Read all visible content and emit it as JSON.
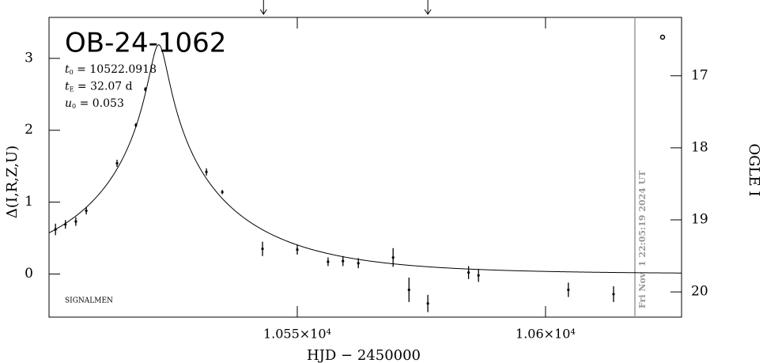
{
  "chart_data": {
    "type": "scatter",
    "title": "OB-24-1062",
    "x_label": "HJD − 2450000",
    "y_label": "Δ(I,R,Z,U)",
    "y2_label": "OGLE I",
    "credit": "SIGNALMEN",
    "params": [
      {
        "symbol": "t",
        "sub": "0",
        "value": 10522.0918,
        "unit": ""
      },
      {
        "symbol": "t",
        "sub": "E",
        "value": 32.07,
        "unit": "d"
      },
      {
        "symbol": "u",
        "sub": "0",
        "value": 0.053,
        "unit": ""
      }
    ],
    "x": [
      10501.3,
      10503.3,
      10505.4,
      10507.5,
      10513.7,
      10517.5,
      10519.4,
      10531.7,
      10534.9,
      10543.0,
      10550.0,
      10556.2,
      10559.2,
      10562.3,
      10569.3,
      10572.5,
      10576.3,
      10584.5,
      10586.5,
      10604.6,
      10613.7
    ],
    "values": [
      0.62,
      0.69,
      0.73,
      0.88,
      1.54,
      2.07,
      2.57,
      1.42,
      1.14,
      0.35,
      0.34,
      0.17,
      0.18,
      0.15,
      0.23,
      -0.22,
      -0.41,
      0.02,
      -0.02,
      -0.22,
      -0.28
    ],
    "errors": [
      0.08,
      0.06,
      0.06,
      0.05,
      0.05,
      0.03,
      0.03,
      0.05,
      0.03,
      0.1,
      0.07,
      0.06,
      0.07,
      0.07,
      0.13,
      0.17,
      0.12,
      0.09,
      0.09,
      0.1,
      0.11
    ],
    "color": "#000000",
    "xlim": [
      10500,
      10627.4
    ],
    "ylim": [
      -0.6,
      3.57
    ],
    "y2lim": [
      20.35,
      16.19
    ],
    "xticks": [
      {
        "value": 10550,
        "label": "1.055×10⁴"
      },
      {
        "value": 10600,
        "label": "1.06×10⁴"
      }
    ],
    "yticks": [
      0,
      1,
      2,
      3
    ],
    "y2ticks": [
      17,
      18,
      19,
      20
    ],
    "arrows": [
      10543.2,
      10576.3
    ],
    "date_line": {
      "value": 10618.0,
      "label": "Fri Nov  1 22:05:19 2024 UT"
    }
  }
}
